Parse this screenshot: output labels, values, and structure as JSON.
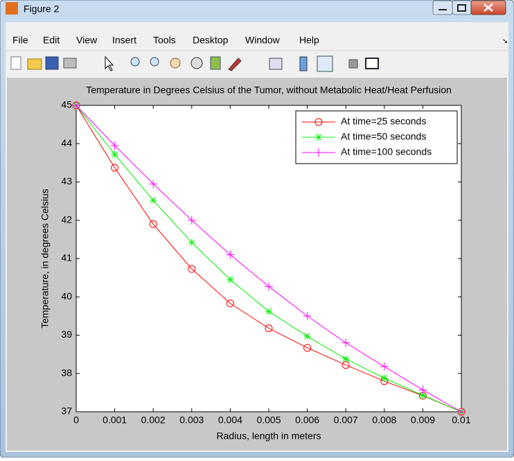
{
  "window": {
    "title": "Figure 2",
    "menu": [
      "File",
      "Edit",
      "View",
      "Insert",
      "Tools",
      "Desktop",
      "Window",
      "Help"
    ]
  },
  "chart_data": {
    "type": "line",
    "title": "Temperature in Degrees Celsius of the Tumor, without Metabolic Heat/Heat Perfusion",
    "x_label": "Radius, length in meters",
    "y_label": "Temperature, in degrees Celsius",
    "x": [
      0,
      0.001,
      0.002,
      0.003,
      0.004,
      0.005,
      0.006,
      0.007,
      0.008,
      0.009,
      0.01
    ],
    "series": [
      {
        "name": "At time=25 seconds",
        "color": "#ff0000",
        "marker": "o",
        "values": [
          45,
          43.37,
          41.9,
          40.73,
          39.83,
          39.18,
          38.67,
          38.22,
          37.8,
          37.42,
          37
        ]
      },
      {
        "name": "At time=50 seconds",
        "color": "#00ee00",
        "marker": "*",
        "values": [
          45,
          43.72,
          42.52,
          41.42,
          40.45,
          39.62,
          38.97,
          38.38,
          37.88,
          37.43,
          37
        ]
      },
      {
        "name": "At time=100 seconds",
        "color": "#ff00ff",
        "marker": "+",
        "values": [
          45,
          43.95,
          42.95,
          42.0,
          41.1,
          40.27,
          39.5,
          38.8,
          38.18,
          37.57,
          37
        ]
      }
    ],
    "xlim": [
      0,
      0.01
    ],
    "xticks": [
      0,
      0.001,
      0.002,
      0.003,
      0.004,
      0.005,
      0.006,
      0.007,
      0.008,
      0.009,
      0.01
    ],
    "ylim": [
      37,
      45
    ],
    "yticks": [
      37,
      38,
      39,
      40,
      41,
      42,
      43,
      44,
      45
    ],
    "legend": "upper right",
    "grid": false
  }
}
